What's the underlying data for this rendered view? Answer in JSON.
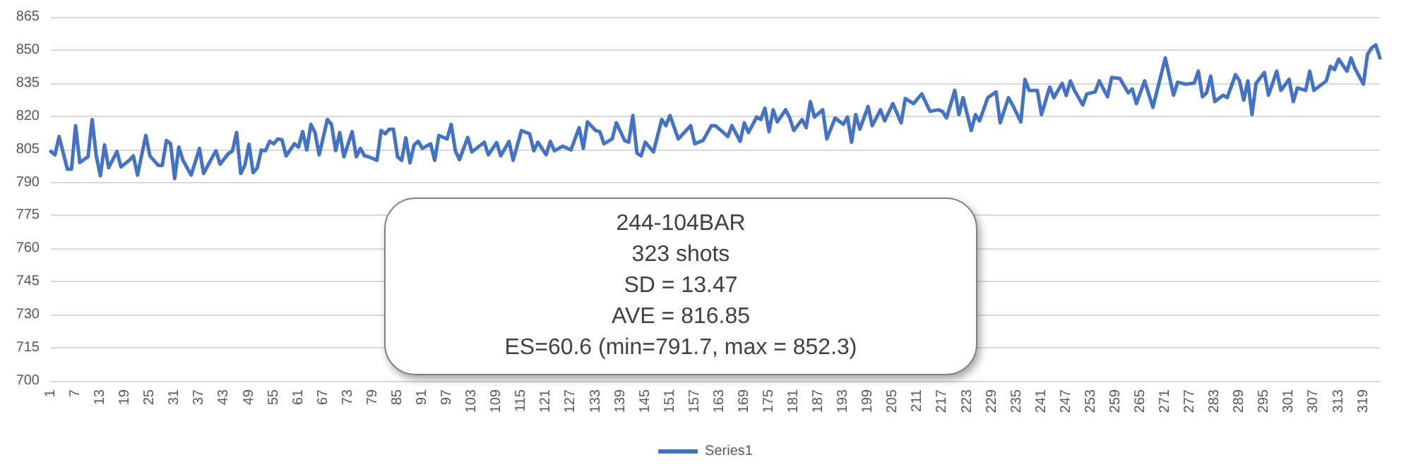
{
  "chart_data": {
    "type": "line",
    "legend": "bottom",
    "grid": "y",
    "marker": "none",
    "line_style": "solid",
    "annotations": [
      "244-104BAR",
      "323 shots",
      "SD = 13.47",
      "AVE = 816.85",
      "ES=60.6 (min=791.7, max = 852.3)"
    ],
    "xlim": [
      1,
      323
    ],
    "xticks": [
      1,
      7,
      13,
      19,
      25,
      31,
      37,
      43,
      49,
      55,
      61,
      67,
      73,
      79,
      85,
      91,
      97,
      103,
      109,
      115,
      121,
      127,
      133,
      139,
      145,
      151,
      157,
      163,
      169,
      175,
      181,
      187,
      193,
      199,
      205,
      211,
      217,
      223,
      229,
      235,
      241,
      247,
      253,
      259,
      265,
      271,
      277,
      283,
      289,
      295,
      301,
      307,
      313,
      319
    ],
    "ylim": [
      700,
      865
    ],
    "yticks": [
      700,
      715,
      730,
      745,
      760,
      775,
      790,
      805,
      820,
      835,
      850,
      865
    ],
    "series": [
      {
        "name": "Series1",
        "color": "#4472c4",
        "x": [
          1,
          2,
          3,
          5,
          6,
          7,
          8,
          10,
          11,
          12,
          13,
          14,
          15,
          17,
          18,
          20,
          21,
          22,
          24,
          25,
          27,
          28,
          29,
          30,
          31,
          32,
          33,
          35,
          37,
          38,
          40,
          41,
          42,
          44,
          45,
          46,
          47,
          48,
          49,
          50,
          51,
          52,
          53,
          54,
          55,
          56,
          57,
          58,
          60,
          61,
          62,
          63,
          64,
          65,
          66,
          68,
          69,
          70,
          71,
          72,
          74,
          75,
          76,
          77,
          78,
          80,
          81,
          82,
          83,
          84,
          85,
          86,
          87,
          88,
          89,
          90,
          91,
          93,
          94,
          95,
          97,
          98,
          99,
          100,
          102,
          103,
          106,
          107,
          109,
          110,
          112,
          113,
          115,
          117,
          118,
          119,
          121,
          122,
          123,
          125,
          127,
          129,
          130,
          131,
          133,
          134,
          135,
          137,
          138,
          140,
          141,
          142,
          143,
          144,
          145,
          147,
          149,
          150,
          151,
          153,
          156,
          157,
          159,
          161,
          162,
          163,
          165,
          166,
          168,
          169,
          170,
          172,
          173,
          174,
          175,
          176,
          177,
          179,
          180,
          181,
          183,
          184,
          185,
          186,
          188,
          189,
          191,
          193,
          194,
          195,
          196,
          197,
          199,
          200,
          202,
          203,
          205,
          207,
          208,
          210,
          212,
          214,
          216,
          217,
          218,
          220,
          221,
          222,
          224,
          225,
          226,
          228,
          230,
          231,
          233,
          234,
          236,
          237,
          238,
          240,
          241,
          243,
          244,
          246,
          247,
          248,
          249,
          251,
          252,
          254,
          255,
          257,
          258,
          260,
          262,
          263,
          264,
          266,
          268,
          271,
          273,
          274,
          276,
          278,
          279,
          280,
          281,
          282,
          283,
          285,
          286,
          288,
          289,
          290,
          291,
          292,
          293,
          295,
          296,
          298,
          299,
          301,
          302,
          303,
          305,
          306,
          307,
          310,
          311,
          312,
          313,
          315,
          316,
          317,
          319,
          320,
          321,
          322,
          323
        ],
        "values": [
          804,
          802.5,
          810.8,
          796,
          796,
          815.7,
          799,
          801.6,
          818.5,
          802,
          793,
          807,
          796.6,
          804,
          797,
          800,
          802,
          793.3,
          811.3,
          802,
          797.7,
          797.7,
          809,
          807.5,
          791.7,
          806,
          800,
          793.3,
          805.4,
          794,
          801,
          804.3,
          798.3,
          803,
          804.3,
          812.6,
          794,
          797.7,
          807.3,
          794.4,
          796.6,
          804.7,
          804.3,
          808.6,
          807.5,
          809.7,
          809.3,
          802,
          807.5,
          806,
          813,
          804.7,
          816.3,
          812.6,
          802.5,
          818.5,
          816.3,
          804.3,
          812.6,
          801.6,
          813,
          801.6,
          805.4,
          802,
          801.6,
          800,
          813.5,
          812,
          814.1,
          814.1,
          801.6,
          800,
          810.2,
          798.8,
          806.9,
          808.6,
          805.4,
          807.5,
          800,
          811.3,
          809.7,
          816.3,
          804.3,
          800.3,
          810.4,
          803.8,
          808.2,
          802.5,
          808,
          802,
          808.6,
          800,
          813.5,
          812,
          804.3,
          808.2,
          802.5,
          808.6,
          804.3,
          806.4,
          804.7,
          814.8,
          805.4,
          817.4,
          813.5,
          813,
          807.5,
          809.7,
          817,
          809,
          808.2,
          820.3,
          803.2,
          802,
          808.2,
          803.8,
          818.5,
          815.7,
          820.3,
          809.7,
          815.7,
          807.5,
          809,
          815.7,
          815.7,
          814.1,
          810.8,
          815.7,
          808.6,
          817,
          812.6,
          819.6,
          818.5,
          823.6,
          813,
          822.9,
          817.4,
          822.9,
          819.2,
          813.5,
          818.5,
          814.8,
          826.6,
          819.6,
          822.9,
          809.7,
          819.2,
          816.3,
          819.6,
          808.2,
          820.7,
          814.1,
          824.4,
          815.7,
          822.9,
          817.9,
          825.7,
          817,
          828,
          825.7,
          830.1,
          822.2,
          822.9,
          822.2,
          819.2,
          831.7,
          820.7,
          828.4,
          813.5,
          820.7,
          817.9,
          828.4,
          831,
          817,
          828.4,
          825.1,
          817.4,
          836.7,
          831.7,
          831.7,
          820.7,
          833.2,
          828.4,
          834.9,
          829.4,
          836,
          831.7,
          825.1,
          830.1,
          831,
          836,
          828.8,
          837.6,
          837.1,
          830.6,
          832.3,
          825.7,
          836,
          824,
          846.4,
          829.5,
          835.4,
          834.5,
          835,
          840.4,
          828.8,
          830.6,
          838.2,
          826.6,
          829.5,
          828.4,
          838.8,
          836,
          827.3,
          836,
          820.7,
          834.9,
          839.8,
          829.5,
          840.4,
          831.7,
          836.7,
          826.6,
          832.8,
          831.7,
          840.4,
          831.7,
          836,
          842.6,
          841.1,
          845.9,
          840.4,
          846.4,
          841.5,
          834.5,
          848.1,
          851,
          852.3,
          846.4
        ]
      }
    ]
  }
}
